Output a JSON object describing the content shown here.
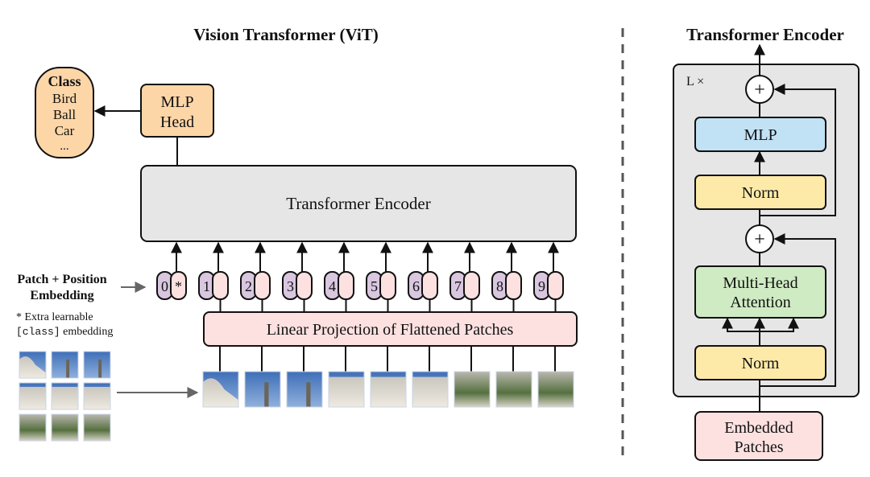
{
  "vit": {
    "title": "Vision Transformer (ViT)",
    "class_box": {
      "heading": "Class",
      "items": [
        "Bird",
        "Ball",
        "Car",
        "..."
      ]
    },
    "mlp_head": [
      "MLP",
      "Head"
    ],
    "encoder_label": "Transformer Encoder",
    "embedding_label": [
      "Patch + Position",
      "Embedding"
    ],
    "extra_note": {
      "line1": "* Extra learnable",
      "code": "[class]",
      "rest": " embedding"
    },
    "tokens": [
      "0",
      "1",
      "2",
      "3",
      "4",
      "5",
      "6",
      "7",
      "8",
      "9"
    ],
    "class_token_marker": "*",
    "projection_label": "Linear Projection of Flattened Patches"
  },
  "encoder": {
    "title": "Transformer Encoder",
    "repeat_label": "L ×",
    "plus": "+",
    "mlp": "MLP",
    "norm": "Norm",
    "attention": [
      "Multi-Head",
      "Attention"
    ],
    "input": [
      "Embedded",
      "Patches"
    ]
  },
  "colors": {
    "orange": "#fdd6a8",
    "gray": "#e6e6e6",
    "purple": "#d9c6df",
    "pink": "#fde1e1",
    "blue": "#c1e2f4",
    "yellow": "#fdeaa9",
    "green": "#cfebc3"
  }
}
